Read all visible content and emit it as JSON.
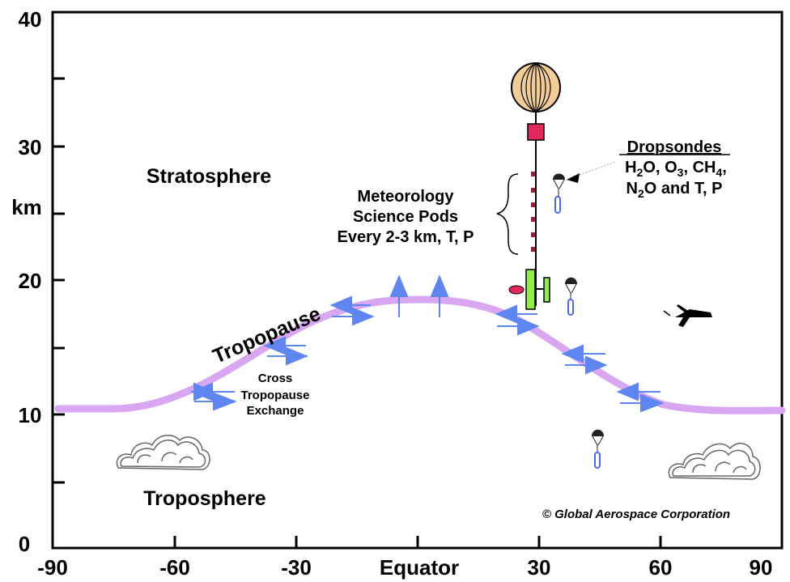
{
  "axes": {
    "y_ticks": [
      "0",
      "10",
      "20",
      "30",
      "40"
    ],
    "y_unit": "km",
    "x_ticks": [
      "-90",
      "-60",
      "-30",
      "Equator",
      "30",
      "60",
      "90"
    ]
  },
  "labels": {
    "stratosphere": "Stratosphere",
    "troposphere": "Troposphere",
    "tropopause": "Tropopause",
    "exchange_line1": "Cross",
    "exchange_line2": "Tropopause",
    "exchange_line3": "Exchange",
    "pods_line1": "Meteorology",
    "pods_line2": "Science Pods",
    "pods_line3": "Every 2-3 km, T, P",
    "dropsondes_title": "Dropsondes",
    "dropsondes_h2o_a": "H",
    "dropsondes_h2o_sub": "2",
    "dropsondes_h2o_b": "O, O",
    "dropsondes_o3_sub": "3",
    "dropsondes_ch4_a": ", CH",
    "dropsondes_ch4_sub": "4",
    "dropsondes_ch4_b": ",",
    "dropsondes_n2o_a": "N",
    "dropsondes_n2o_sub": "2",
    "dropsondes_n2o_b": "O and T, P",
    "copyright": "© Global Aerospace Corporation"
  },
  "colors": {
    "tropopause": "#d9a6f2",
    "arrow": "#5f86f0",
    "balloon": "#f3cd98",
    "gondola": "#e0285a",
    "pod": "#9b2040",
    "green_pod": "#8ef045",
    "parachute": "#222222",
    "sonde_line": "#4a6be8"
  }
}
